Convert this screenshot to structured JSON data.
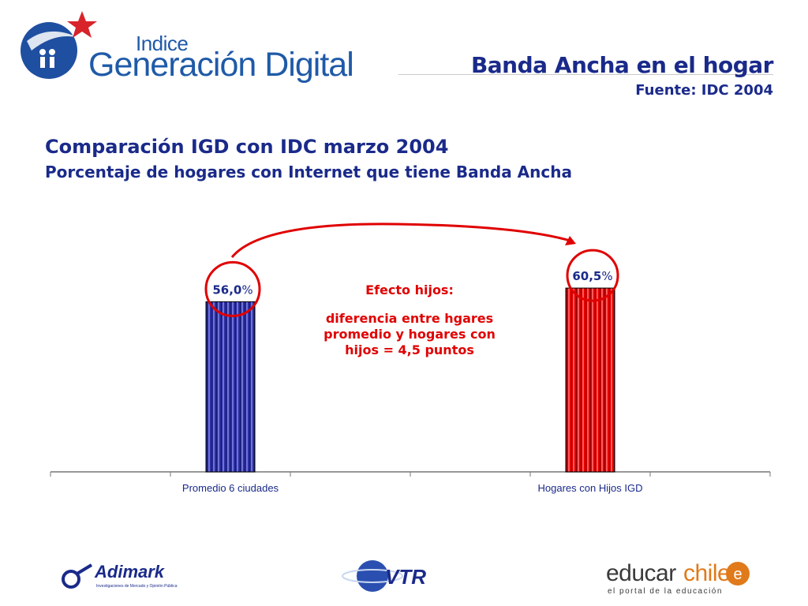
{
  "header": {
    "logo_small_word": "Indice",
    "logo_big_word": "Generación Digital",
    "title": "Banda Ancha en el hogar",
    "source": "Fuente: IDC 2004"
  },
  "chart_heading": {
    "title": "Comparación IGD con IDC marzo 2004",
    "subtitle": "Porcentaje de hogares con Internet que tiene Banda Ancha"
  },
  "chart_data": {
    "type": "bar",
    "categories": [
      "Promedio 6 ciudades",
      "Hogares con Hijos IGD"
    ],
    "values": [
      56.0,
      60.5
    ],
    "value_labels": [
      "56,0",
      "60,5"
    ],
    "unit_label": "%",
    "colors": [
      "#2b2fa0",
      "#e00000"
    ],
    "legend": "none",
    "grid": false
  },
  "annotation": {
    "title": "Efecto hijos:",
    "body": "diferencia entre hgares promedio y hogares con hijos = 4,5 puntos",
    "color": "#e00000"
  },
  "footer": {
    "adimark_name": "Adimark",
    "adimark_tagline": "Investigaciones de Mercado y Opinión Pública",
    "vtr_name": "VTR",
    "educar_name_a": "educar",
    "educar_name_b": "chile",
    "educar_tagline": "el portal de la educación"
  }
}
